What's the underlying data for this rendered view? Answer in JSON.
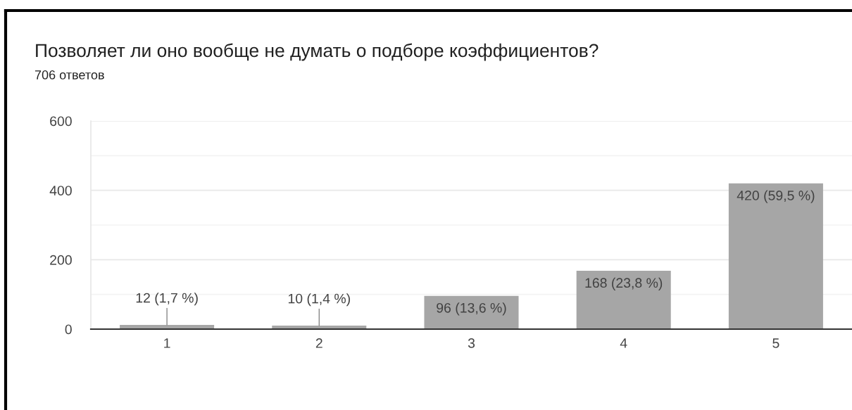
{
  "chart_data": {
    "type": "bar",
    "title": "Позволяет ли оно вообще не думать о подборе коэффициентов?",
    "subtitle": "706 ответов",
    "categories": [
      "1",
      "2",
      "3",
      "4",
      "5"
    ],
    "values": [
      12,
      10,
      96,
      168,
      420
    ],
    "value_labels": [
      "12 (1,7 %)",
      "10 (1,4 %)",
      "96 (13,6 %)",
      "168 (23,8 %)",
      "420 (59,5 %)"
    ],
    "color": "#a6a6a6",
    "ylim": [
      0,
      600
    ],
    "yticks": [
      0,
      {
        "value": 100,
        "label": null
      },
      200,
      {
        "value": 300,
        "label": null
      },
      400,
      {
        "value": 500,
        "label": null
      },
      600
    ],
    "grid": "y"
  }
}
